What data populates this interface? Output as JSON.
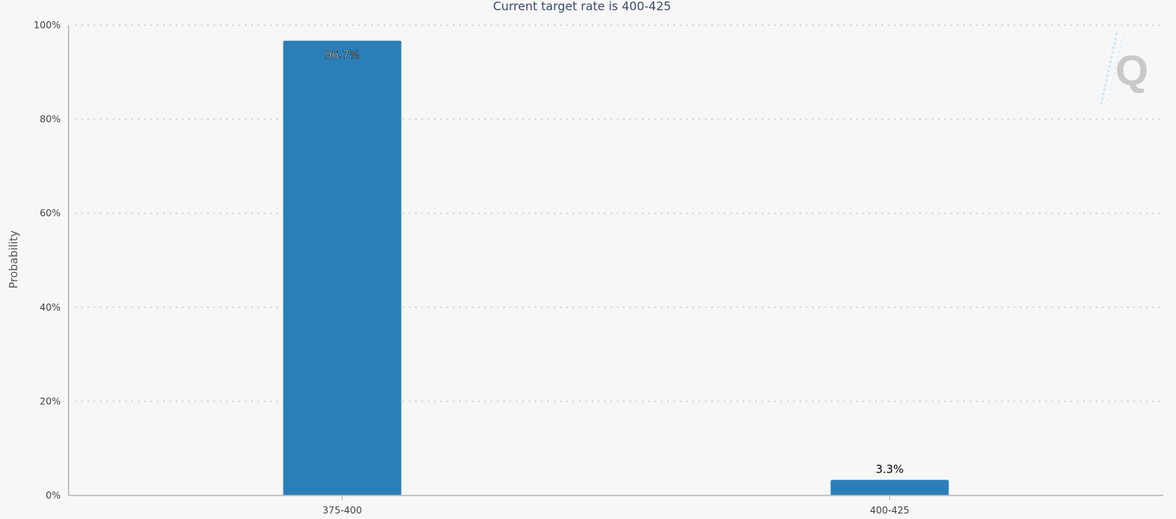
{
  "chart_data": {
    "type": "bar",
    "title": "Current target rate is 400-425",
    "xlabel": "",
    "ylabel": "Probability",
    "categories": [
      "375-400",
      "400-425"
    ],
    "values": [
      96.7,
      3.3
    ],
    "value_labels": [
      "96.7%",
      "3.3%"
    ],
    "ylim": [
      0,
      100
    ],
    "yticks": [
      0,
      20,
      40,
      60,
      80,
      100
    ],
    "ytick_labels": [
      "0%",
      "20%",
      "40%",
      "60%",
      "80%",
      "100%"
    ],
    "grid": true,
    "legend": "none",
    "colors": {
      "bar": "#2a7fb8",
      "background": "#f7f7f7"
    }
  },
  "watermark": {
    "icon": "q-logo-icon",
    "text": "Q"
  }
}
